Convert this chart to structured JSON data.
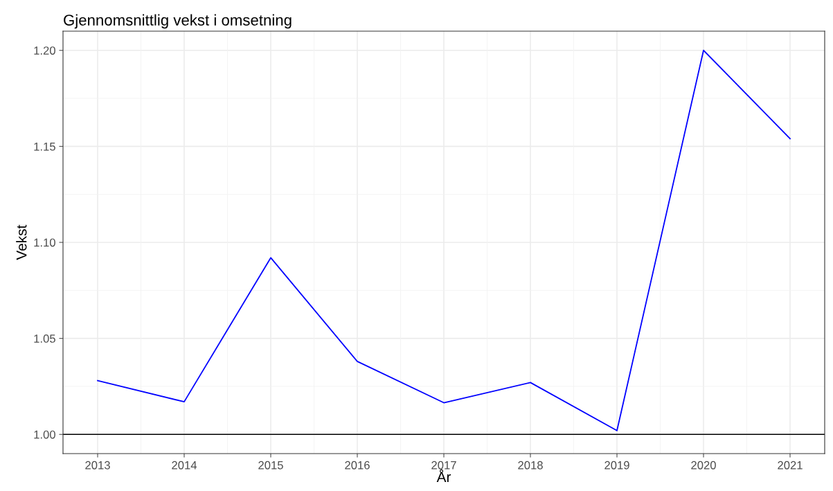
{
  "chart_data": {
    "type": "line",
    "title": "Gjennomsnittlig vekst i omsetning",
    "xlabel": "År",
    "ylabel": "Vekst",
    "x": [
      2013,
      2014,
      2015,
      2016,
      2017,
      2018,
      2019,
      2020,
      2021
    ],
    "series": [
      {
        "color": "#0000ff",
        "values": [
          1.028,
          1.017,
          1.092,
          1.038,
          1.0165,
          1.027,
          1.002,
          1.2,
          1.154
        ]
      }
    ],
    "xlim": [
      2012.6,
      2021.4
    ],
    "xticks": [
      2013,
      2014,
      2015,
      2016,
      2017,
      2018,
      2019,
      2020,
      2021
    ],
    "ylim": [
      0.99,
      1.21
    ],
    "yticks": [
      {
        "value": 1.0,
        "label": "1.00"
      },
      {
        "value": 1.05,
        "label": "1.05"
      },
      {
        "value": 1.1,
        "label": "1.10"
      },
      {
        "value": 1.15,
        "label": "1.15"
      },
      {
        "value": 1.2,
        "label": "1.20"
      }
    ],
    "ref_lines": [
      {
        "axis": "y",
        "value": 1.0,
        "color": "#000000"
      }
    ],
    "grid": true,
    "legend": false
  }
}
